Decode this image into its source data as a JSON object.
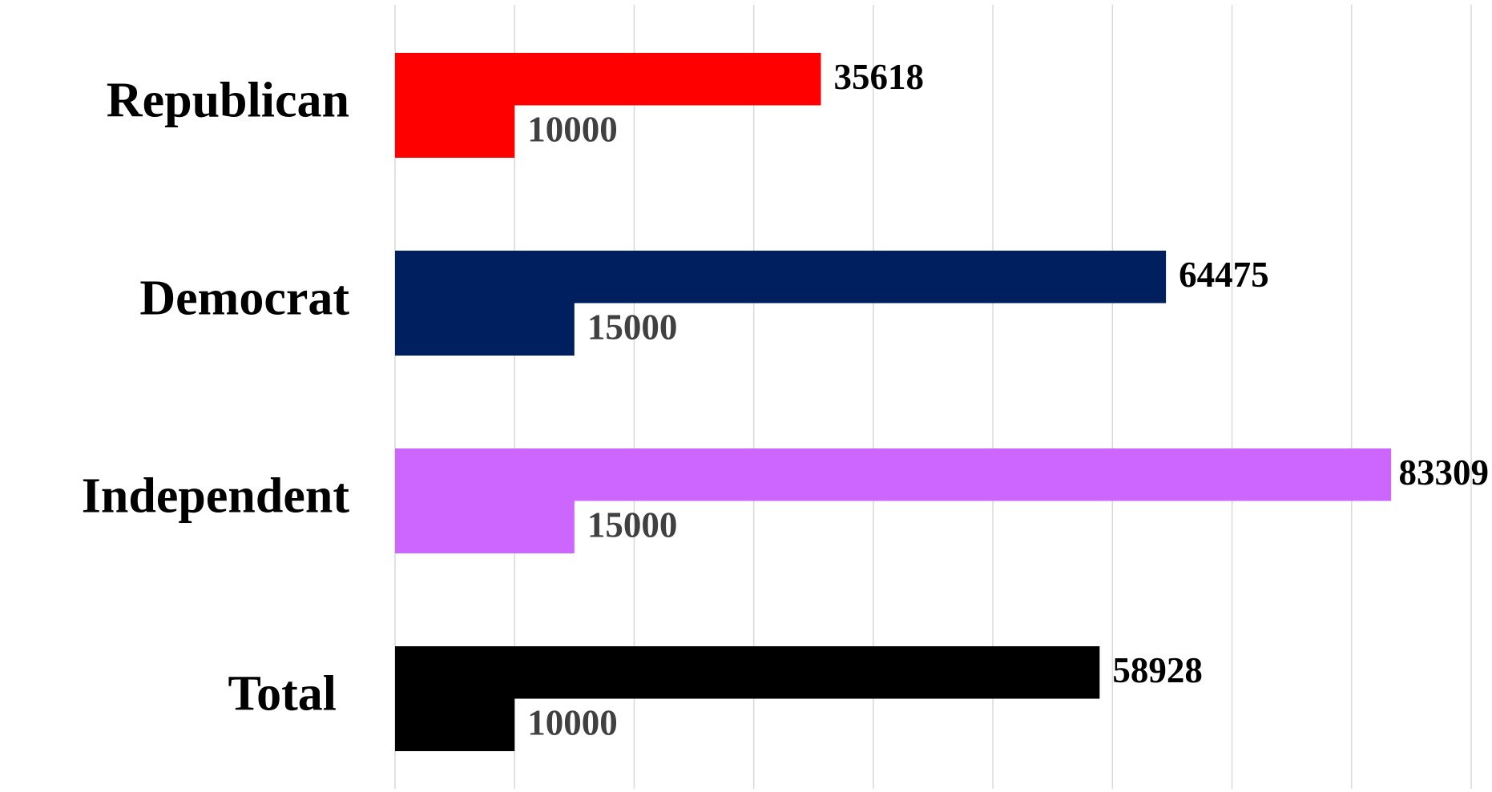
{
  "chart_data": {
    "type": "bar",
    "orientation": "horizontal",
    "categories": [
      "Republican",
      "Democrat",
      "Independent",
      "Total"
    ],
    "colors": [
      "#ff0000",
      "#001f5f",
      "#cc66ff",
      "#000000"
    ],
    "series": [
      {
        "values": [
          35618,
          64475,
          83309,
          58928
        ]
      },
      {
        "values": [
          10000,
          15000,
          15000,
          10000
        ]
      }
    ],
    "xlim": [
      0,
      90000
    ],
    "xticks": [
      0,
      10000,
      20000,
      30000,
      40000,
      50000,
      60000,
      70000,
      80000,
      90000
    ],
    "grid": true
  }
}
